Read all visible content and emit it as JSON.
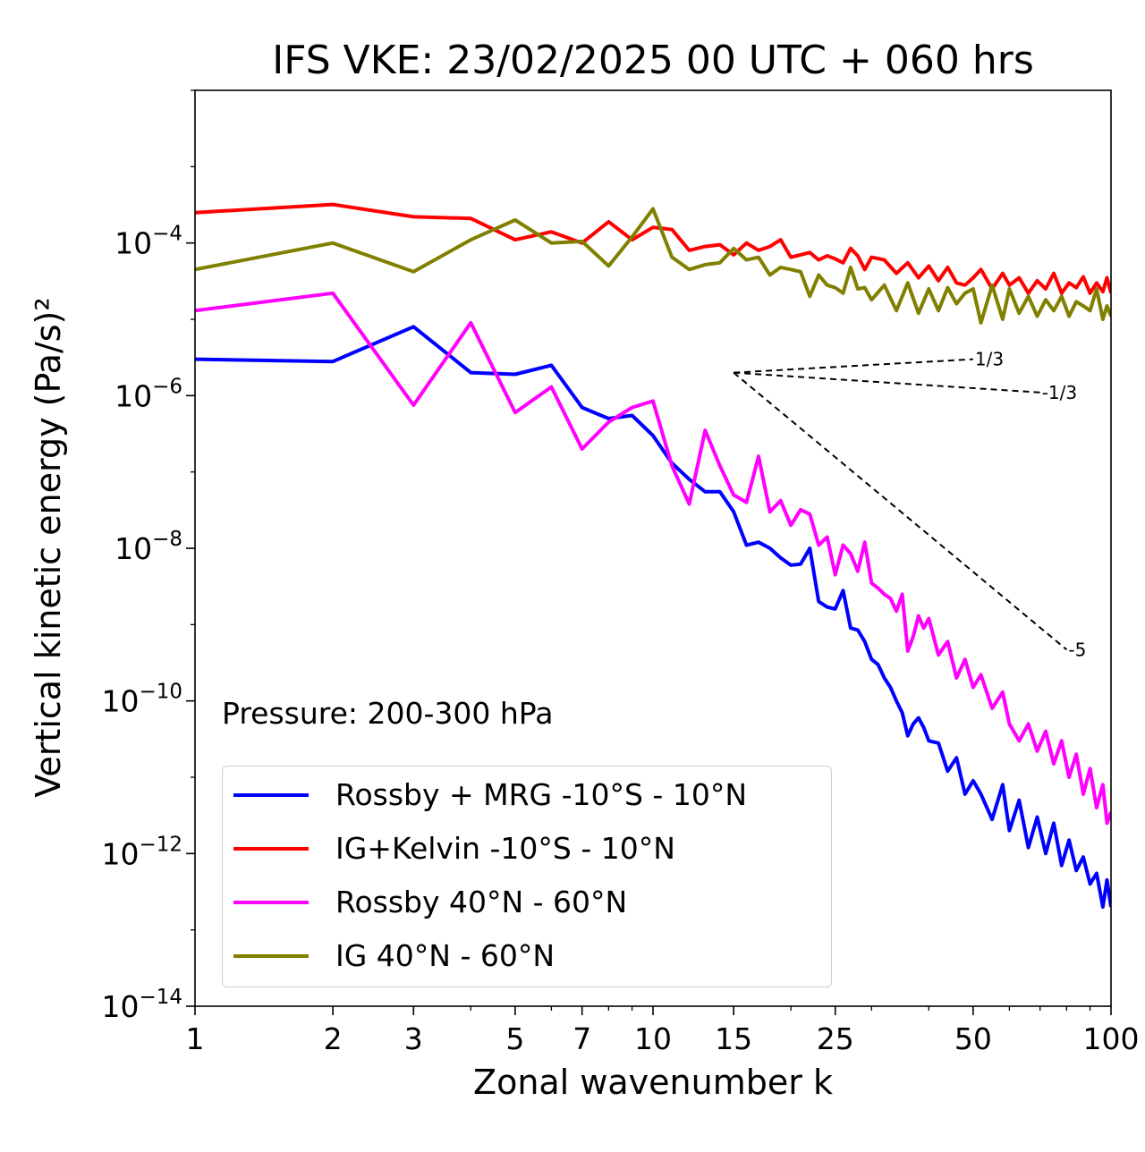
{
  "chart": {
    "title": "IFS VKE: 23/02/2025 00 UTC + 060 hrs",
    "xlabel": "Zonal wavenumber k",
    "ylabel": "Vertical kinetic energy (Pa/s)²",
    "annotation": "Pressure: 200-300 hPa"
  },
  "chart_data": {
    "type": "line",
    "xscale": "log",
    "yscale": "log",
    "xlim": [
      1,
      100
    ],
    "ylim": [
      1e-14,
      0.01
    ],
    "x_ticks": [
      {
        "value": 1,
        "label": "1"
      },
      {
        "value": 2,
        "label": "2"
      },
      {
        "value": 3,
        "label": "3"
      },
      {
        "value": 5,
        "label": "5"
      },
      {
        "value": 7,
        "label": "7"
      },
      {
        "value": 10,
        "label": "10"
      },
      {
        "value": 15,
        "label": "15"
      },
      {
        "value": 25,
        "label": "25"
      },
      {
        "value": 50,
        "label": "50"
      },
      {
        "value": 100,
        "label": "100"
      }
    ],
    "y_ticks": [
      {
        "exp": -14,
        "base": "10",
        "label": "−14"
      },
      {
        "exp": -12,
        "base": "10",
        "label": "−12"
      },
      {
        "exp": -10,
        "base": "10",
        "label": "−10"
      },
      {
        "exp": -8,
        "base": "10",
        "label": "−8"
      },
      {
        "exp": -6,
        "base": "10",
        "label": "−6"
      },
      {
        "exp": -4,
        "base": "10",
        "label": "−4"
      }
    ],
    "legend_placement": "lower-left",
    "grid": false,
    "series": [
      {
        "name": "Rossby + MRG -10°S - 10°N",
        "color": "#0000ff",
        "points": [
          [
            1,
            3e-06
          ],
          [
            2,
            2.8e-06
          ],
          [
            3,
            8e-06
          ],
          [
            4,
            2e-06
          ],
          [
            5,
            1.9e-06
          ],
          [
            6,
            2.5e-06
          ],
          [
            7,
            7e-07
          ],
          [
            8,
            5e-07
          ],
          [
            9,
            5.5e-07
          ],
          [
            10,
            3e-07
          ],
          [
            11,
            1.3e-07
          ],
          [
            12,
            8e-08
          ],
          [
            13,
            5.5e-08
          ],
          [
            14,
            5.5e-08
          ],
          [
            15,
            3e-08
          ],
          [
            16,
            1.1e-08
          ],
          [
            17,
            1.2e-08
          ],
          [
            18,
            1e-08
          ],
          [
            19,
            7.5e-09
          ],
          [
            20,
            6e-09
          ],
          [
            21,
            6.2e-09
          ],
          [
            22,
            1e-08
          ],
          [
            23,
            2e-09
          ],
          [
            24,
            1.7e-09
          ],
          [
            25,
            1.6e-09
          ],
          [
            26,
            2.8e-09
          ],
          [
            27,
            9e-10
          ],
          [
            28,
            8.5e-10
          ],
          [
            29,
            6e-10
          ],
          [
            30,
            3.5e-10
          ],
          [
            31,
            3e-10
          ],
          [
            32,
            2e-10
          ],
          [
            33,
            1.5e-10
          ],
          [
            34,
            1e-10
          ],
          [
            35,
            7e-11
          ],
          [
            36,
            3.5e-11
          ],
          [
            37,
            5e-11
          ],
          [
            38,
            6e-11
          ],
          [
            39,
            4.5e-11
          ],
          [
            40,
            3e-11
          ],
          [
            42,
            2.8e-11
          ],
          [
            44,
            1.2e-11
          ],
          [
            46,
            1.8e-11
          ],
          [
            48,
            6e-12
          ],
          [
            50,
            9e-12
          ],
          [
            52,
            6e-12
          ],
          [
            55,
            2.8e-12
          ],
          [
            58,
            8e-12
          ],
          [
            60,
            2e-12
          ],
          [
            63,
            5e-12
          ],
          [
            66,
            1.2e-12
          ],
          [
            69,
            3e-12
          ],
          [
            72,
            1e-12
          ],
          [
            75,
            2.5e-12
          ],
          [
            78,
            7e-13
          ],
          [
            81,
            1.5e-12
          ],
          [
            84,
            6e-13
          ],
          [
            87,
            9e-13
          ],
          [
            90,
            4e-13
          ],
          [
            93,
            5.5e-13
          ],
          [
            96,
            2e-13
          ],
          [
            98,
            4.5e-13
          ],
          [
            100,
            2e-13
          ]
        ]
      },
      {
        "name": "IG+Kelvin -10°S - 10°N",
        "color": "#ff0000",
        "points": [
          [
            1,
            0.00025
          ],
          [
            2,
            0.00032
          ],
          [
            3,
            0.00022
          ],
          [
            4,
            0.00021
          ],
          [
            5,
            0.00011
          ],
          [
            6,
            0.00014
          ],
          [
            7,
            0.0001
          ],
          [
            8,
            0.00019
          ],
          [
            9,
            0.00011
          ],
          [
            10,
            0.00016
          ],
          [
            11,
            0.00015
          ],
          [
            12,
            8e-05
          ],
          [
            13,
            9e-05
          ],
          [
            14,
            9.5e-05
          ],
          [
            15,
            7e-05
          ],
          [
            16,
            0.0001
          ],
          [
            17,
            8e-05
          ],
          [
            18,
            9e-05
          ],
          [
            19,
            0.00011
          ],
          [
            20,
            6.5e-05
          ],
          [
            21,
            7e-05
          ],
          [
            22,
            7.5e-05
          ],
          [
            23,
            6e-05
          ],
          [
            24,
            6.8e-05
          ],
          [
            25,
            6.2e-05
          ],
          [
            26,
            5.5e-05
          ],
          [
            27,
            8.5e-05
          ],
          [
            28,
            6.8e-05
          ],
          [
            29,
            4.5e-05
          ],
          [
            30,
            6.5e-05
          ],
          [
            32,
            6e-05
          ],
          [
            34,
            4e-05
          ],
          [
            36,
            5.5e-05
          ],
          [
            38,
            3.5e-05
          ],
          [
            40,
            5e-05
          ],
          [
            42,
            3.2e-05
          ],
          [
            44,
            4.8e-05
          ],
          [
            46,
            3e-05
          ],
          [
            48,
            2.8e-05
          ],
          [
            50,
            3.5e-05
          ],
          [
            52,
            4.5e-05
          ],
          [
            55,
            2.5e-05
          ],
          [
            58,
            4e-05
          ],
          [
            60,
            2.8e-05
          ],
          [
            63,
            3.5e-05
          ],
          [
            66,
            2.2e-05
          ],
          [
            69,
            3.2e-05
          ],
          [
            72,
            2.5e-05
          ],
          [
            75,
            4e-05
          ],
          [
            78,
            2.2e-05
          ],
          [
            81,
            3e-05
          ],
          [
            84,
            2.6e-05
          ],
          [
            87,
            3.6e-05
          ],
          [
            90,
            2.2e-05
          ],
          [
            93,
            3e-05
          ],
          [
            96,
            2.3e-05
          ],
          [
            98,
            3.5e-05
          ],
          [
            100,
            2.2e-05
          ]
        ]
      },
      {
        "name": "Rossby 40°N - 60°N",
        "color": "#ff00ff",
        "points": [
          [
            1,
            1.3e-05
          ],
          [
            2,
            2.2e-05
          ],
          [
            3,
            7.5e-07
          ],
          [
            4,
            9e-06
          ],
          [
            5,
            6e-07
          ],
          [
            6,
            1.3e-06
          ],
          [
            7,
            2e-07
          ],
          [
            8,
            4.5e-07
          ],
          [
            9,
            7e-07
          ],
          [
            10,
            8.5e-07
          ],
          [
            11,
            1.2e-07
          ],
          [
            12,
            3.8e-08
          ],
          [
            13,
            3.5e-07
          ],
          [
            14,
            1.2e-07
          ],
          [
            15,
            5e-08
          ],
          [
            16,
            4e-08
          ],
          [
            17,
            1.6e-07
          ],
          [
            18,
            3e-08
          ],
          [
            19,
            4.2e-08
          ],
          [
            20,
            2e-08
          ],
          [
            21,
            3.2e-08
          ],
          [
            22,
            2.8e-08
          ],
          [
            23,
            1.1e-08
          ],
          [
            24,
            1.4e-08
          ],
          [
            25,
            4.5e-09
          ],
          [
            26,
            1.1e-08
          ],
          [
            27,
            8.5e-09
          ],
          [
            28,
            5e-09
          ],
          [
            29,
            1.2e-08
          ],
          [
            30,
            3.5e-09
          ],
          [
            31,
            3e-09
          ],
          [
            32,
            2.5e-09
          ],
          [
            33,
            2.2e-09
          ],
          [
            34,
            1.5e-09
          ],
          [
            35,
            2.5e-09
          ],
          [
            36,
            4.5e-10
          ],
          [
            37,
            7e-10
          ],
          [
            38,
            1.3e-09
          ],
          [
            39,
            9e-10
          ],
          [
            40,
            1.2e-09
          ],
          [
            42,
            4e-10
          ],
          [
            44,
            6e-10
          ],
          [
            46,
            2e-10
          ],
          [
            48,
            3.5e-10
          ],
          [
            50,
            1.5e-10
          ],
          [
            52,
            2.2e-10
          ],
          [
            55,
            8e-11
          ],
          [
            58,
            1.3e-10
          ],
          [
            60,
            5e-11
          ],
          [
            63,
            3e-11
          ],
          [
            66,
            5e-11
          ],
          [
            69,
            2.2e-11
          ],
          [
            72,
            4e-11
          ],
          [
            75,
            1.5e-11
          ],
          [
            78,
            3e-11
          ],
          [
            81,
            1e-11
          ],
          [
            84,
            2e-11
          ],
          [
            87,
            6e-12
          ],
          [
            90,
            1.3e-11
          ],
          [
            93,
            4e-12
          ],
          [
            96,
            8e-12
          ],
          [
            98,
            2.5e-12
          ],
          [
            100,
            3.5e-12
          ]
        ]
      },
      {
        "name": "IG 40°N - 60°N",
        "color": "#808000",
        "points": [
          [
            1,
            4.5e-05
          ],
          [
            2,
            0.0001
          ],
          [
            3,
            4.2e-05
          ],
          [
            4,
            0.00011
          ],
          [
            5,
            0.0002
          ],
          [
            6,
            0.0001
          ],
          [
            7,
            0.000105
          ],
          [
            8,
            5e-05
          ],
          [
            9,
            0.00012
          ],
          [
            10,
            0.00028
          ],
          [
            11,
            6.5e-05
          ],
          [
            12,
            4.5e-05
          ],
          [
            13,
            5.2e-05
          ],
          [
            14,
            5.5e-05
          ],
          [
            15,
            8.5e-05
          ],
          [
            16,
            6e-05
          ],
          [
            17,
            6.5e-05
          ],
          [
            18,
            3.8e-05
          ],
          [
            19,
            4.8e-05
          ],
          [
            20,
            4.5e-05
          ],
          [
            21,
            4.2e-05
          ],
          [
            22,
            2e-05
          ],
          [
            23,
            3.8e-05
          ],
          [
            24,
            2.8e-05
          ],
          [
            25,
            2.6e-05
          ],
          [
            26,
            2.2e-05
          ],
          [
            27,
            4.8e-05
          ],
          [
            28,
            2.5e-05
          ],
          [
            29,
            2.6e-05
          ],
          [
            30,
            1.8e-05
          ],
          [
            32,
            2.8e-05
          ],
          [
            34,
            1.3e-05
          ],
          [
            36,
            3e-05
          ],
          [
            38,
            1.2e-05
          ],
          [
            40,
            2.5e-05
          ],
          [
            42,
            1.3e-05
          ],
          [
            44,
            2.6e-05
          ],
          [
            46,
            1.6e-05
          ],
          [
            48,
            2.2e-05
          ],
          [
            50,
            2.5e-05
          ],
          [
            52,
            9e-06
          ],
          [
            55,
            2.8e-05
          ],
          [
            58,
            1e-05
          ],
          [
            60,
            2.5e-05
          ],
          [
            63,
            1.2e-05
          ],
          [
            66,
            2e-05
          ],
          [
            69,
            1.1e-05
          ],
          [
            72,
            1.8e-05
          ],
          [
            75,
            1.3e-05
          ],
          [
            78,
            2e-05
          ],
          [
            81,
            1.1e-05
          ],
          [
            84,
            1.7e-05
          ],
          [
            87,
            1.5e-05
          ],
          [
            90,
            1.3e-05
          ],
          [
            93,
            2.5e-05
          ],
          [
            96,
            1e-05
          ],
          [
            98,
            1.5e-05
          ],
          [
            100,
            1.1e-05
          ]
        ]
      }
    ],
    "reference_lines": [
      {
        "slope_label": "1/3",
        "from": [
          15,
          2e-06
        ],
        "to": [
          50,
          3e-06
        ]
      },
      {
        "slope_label": "-1/3",
        "from": [
          15,
          2e-06
        ],
        "to": [
          70,
          1.1e-06
        ]
      },
      {
        "slope_label": "-5",
        "from": [
          15,
          2e-06
        ],
        "to": [
          80,
          4.7e-10
        ]
      }
    ]
  }
}
